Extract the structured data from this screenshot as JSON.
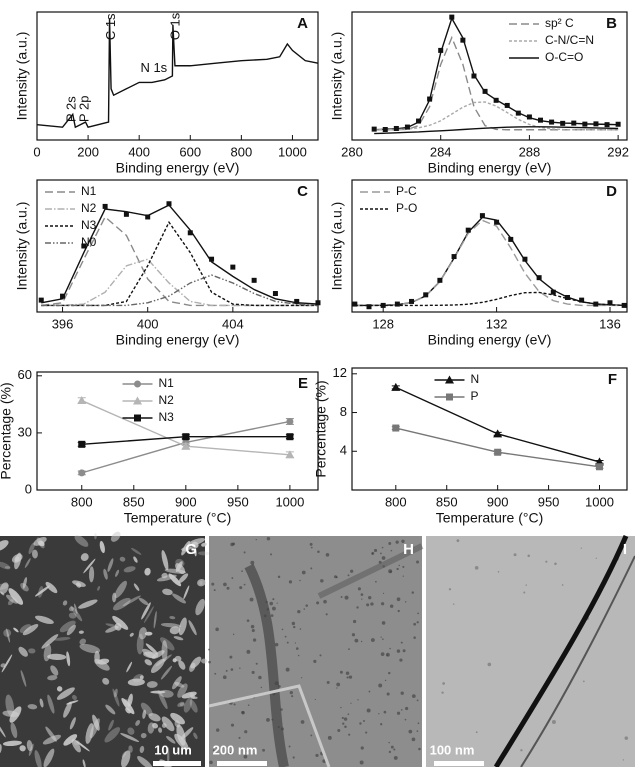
{
  "chart_data": [
    {
      "type": "line",
      "panel": "A",
      "xlabel": "Binding energy (eV)",
      "ylabel": "Intensity (a.u.)",
      "xlim": [
        0,
        1100
      ],
      "xticks": [
        0,
        200,
        400,
        600,
        800,
        1000
      ],
      "ylim": [
        0,
        100
      ],
      "annotations": [
        "P 2s",
        "P 2p",
        "C 1s",
        "N 1s",
        "O 1s"
      ],
      "x": [
        0,
        100,
        140,
        150,
        190,
        200,
        280,
        284,
        290,
        300,
        350,
        400,
        450,
        500,
        530,
        532,
        540,
        600,
        700,
        800,
        900,
        950,
        980,
        1000,
        1050,
        1100
      ],
      "series": [
        {
          "color": "#111111",
          "style": "solid",
          "values": [
            12,
            10,
            20,
            10,
            14,
            10,
            14,
            95,
            40,
            35,
            40,
            45,
            45,
            47,
            50,
            90,
            58,
            58,
            60,
            62,
            63,
            65,
            75,
            70,
            62,
            60
          ]
        }
      ]
    },
    {
      "type": "line",
      "panel": "B",
      "xlabel": "Binding energy (eV)",
      "ylabel": "Intensity (a.u.)",
      "xlim": [
        280,
        292.4
      ],
      "xticks": [
        280,
        284,
        288,
        292
      ],
      "ylim": [
        0,
        100
      ],
      "legend": "upper right",
      "x": [
        281,
        281.5,
        282,
        282.5,
        283,
        283.5,
        284,
        284.5,
        285,
        285.5,
        286,
        286.5,
        287,
        287.5,
        288,
        288.5,
        289,
        289.5,
        290,
        290.5,
        291,
        291.5,
        292
      ],
      "series": [
        {
          "color": "#111111",
          "style": "solid",
          "values": [
            8,
            8.4,
            8.7,
            9.8,
            14,
            31.3,
            68.2,
            95,
            79.8,
            51,
            37.1,
            31.4,
            26.4,
            21.3,
            17.4,
            15.1,
            13.9,
            13.2,
            13,
            12.6,
            12.4,
            12.2,
            12
          ]
        },
        {
          "name": "sp² C",
          "color": "#8a8a8a",
          "style": "long",
          "values": [
            8,
            8,
            8,
            8.3,
            11.2,
            26,
            59,
            80,
            59,
            26,
            11.2,
            8.3,
            8,
            8,
            8,
            8,
            8,
            8,
            8,
            8,
            8,
            8,
            8
          ]
        },
        {
          "name": "C-N/C=N",
          "color": "#aaaaaa",
          "style": "short",
          "values": [
            8,
            8.1,
            8.1,
            8.5,
            9.5,
            11.5,
            15,
            20.3,
            25.6,
            29.3,
            29.7,
            26.5,
            21.4,
            16.1,
            12.1,
            9.8,
            8.7,
            8.2,
            8,
            8,
            8,
            8,
            8
          ]
        },
        {
          "name": "O-C=O",
          "color": "#111111",
          "style": "solid",
          "values": [
            5,
            5.3,
            5.6,
            6,
            6.3,
            6.8,
            7.2,
            7.7,
            8.2,
            8.7,
            9.2,
            9.6,
            10,
            10.2,
            10.3,
            10.3,
            10.2,
            10,
            9.8,
            9.6,
            9.4,
            9.2,
            9
          ]
        },
        {
          "color": "#111111",
          "style": "points",
          "values": [
            8.5,
            8.2,
            9,
            10.1,
            14.8,
            32,
            70,
            96,
            78,
            50,
            38,
            31,
            27,
            21,
            18,
            15.5,
            14,
            13,
            13.2,
            12.4,
            12.6,
            12,
            12.3
          ]
        }
      ]
    },
    {
      "type": "line",
      "panel": "C",
      "xlabel": "Binding energy (eV)",
      "ylabel": "Intensity (a.u.)",
      "xlim": [
        394.8,
        408
      ],
      "xticks": [
        396,
        400,
        404
      ],
      "ylim": [
        0,
        100
      ],
      "legend": "upper left",
      "x": [
        395,
        396,
        397,
        398,
        399,
        400,
        401,
        402,
        403,
        404,
        405,
        406,
        407,
        408
      ],
      "series": [
        {
          "color": "#111111",
          "style": "solid",
          "values": [
            7,
            10,
            45,
            78,
            76,
            73,
            81,
            62,
            38,
            27,
            17,
            10,
            7,
            6
          ]
        },
        {
          "name": "N1",
          "color": "#8a8a8a",
          "style": "long",
          "values": [
            5,
            7,
            40,
            72,
            58,
            25,
            8,
            5,
            5,
            5,
            5,
            5,
            5,
            5
          ]
        },
        {
          "name": "N2",
          "color": "#b0b0b0",
          "style": "dashdot",
          "values": [
            5,
            5,
            6,
            15,
            35,
            40,
            22,
            8,
            5,
            5,
            5,
            5,
            5,
            5
          ]
        },
        {
          "name": "N3",
          "color": "#111111",
          "style": "short",
          "values": [
            5,
            5,
            5,
            5,
            8,
            35,
            68,
            45,
            15,
            6,
            5,
            5,
            5,
            5
          ]
        },
        {
          "name": "N0",
          "color": "#666666",
          "style": "dashdotdot",
          "values": [
            5,
            5,
            5,
            5,
            5,
            7,
            12,
            22,
            28,
            22,
            14,
            8,
            6,
            5
          ]
        },
        {
          "color": "#111111",
          "style": "points",
          "values": [
            9,
            12,
            50,
            80,
            74,
            72,
            82,
            60,
            40,
            34,
            24,
            14,
            8,
            7
          ]
        }
      ]
    },
    {
      "type": "line",
      "panel": "D",
      "xlabel": "Binding energy (eV)",
      "ylabel": "Intensity (a.u.)",
      "xlim": [
        126.9,
        136.6
      ],
      "xticks": [
        128,
        132,
        136
      ],
      "ylim": [
        0,
        100
      ],
      "legend": "upper left",
      "x": [
        127,
        127.5,
        128,
        128.5,
        129,
        129.5,
        130,
        130.5,
        131,
        131.5,
        132,
        132.5,
        133,
        133.5,
        134,
        134.5,
        135,
        135.5,
        136,
        136.5
      ],
      "series": [
        {
          "color": "#111111",
          "style": "solid",
          "values": [
            5,
            5,
            5.1,
            5.5,
            7.2,
            12.2,
            23.1,
            40.9,
            60.5,
            71.7,
            69.6,
            56,
            39,
            25.2,
            16.6,
            11.2,
            7.7,
            6.1,
            5.4,
            5.1
          ]
        },
        {
          "name": "P-C",
          "color": "#9a9a9a",
          "style": "long",
          "values": [
            5,
            5,
            5.1,
            5.5,
            7.2,
            12.2,
            23,
            40.6,
            59.6,
            69.4,
            65,
            48.5,
            29.4,
            15.4,
            8.6,
            6,
            5,
            5,
            5,
            5
          ]
        },
        {
          "name": "P-O",
          "color": "#111111",
          "style": "short",
          "values": [
            5,
            5,
            5,
            5,
            5,
            5,
            5.1,
            5.3,
            5.9,
            7.3,
            9.6,
            12.5,
            14.6,
            14.8,
            13,
            10.2,
            7.7,
            6.1,
            5.4,
            5.1
          ]
        },
        {
          "color": "#111111",
          "style": "points",
          "values": [
            6,
            4,
            5,
            6,
            8,
            13,
            24,
            42,
            62,
            73,
            68,
            55,
            40,
            26,
            15,
            11,
            9,
            6,
            7,
            5
          ]
        }
      ]
    },
    {
      "type": "line",
      "panel": "E",
      "xlabel": "Temperature (°C)",
      "ylabel": "Percentage (%)",
      "xlim": [
        757,
        1027
      ],
      "xticks": [
        800,
        850,
        900,
        950,
        1000
      ],
      "ylim": [
        0,
        62
      ],
      "yticks": [
        0,
        30,
        60
      ],
      "legend": "upper center",
      "x": [
        800,
        900,
        1000
      ],
      "series": [
        {
          "name": "N1",
          "color": "#8c8c8c",
          "style": "solid",
          "marker": "circle",
          "values": [
            9,
            25,
            36
          ],
          "errors": [
            1,
            1.5,
            1.5
          ]
        },
        {
          "name": "N2",
          "color": "#b5b5b5",
          "style": "solid",
          "marker": "triangle",
          "values": [
            47,
            23,
            18.5
          ],
          "errors": [
            1.5,
            1.5,
            1.5
          ]
        },
        {
          "name": "N3",
          "color": "#111111",
          "style": "solid",
          "marker": "square",
          "values": [
            24,
            28,
            28
          ],
          "errors": [
            1,
            1,
            1
          ]
        }
      ]
    },
    {
      "type": "line",
      "panel": "F",
      "xlabel": "Temperature (°C)",
      "ylabel": "Percentage (%)",
      "xlim": [
        757,
        1027
      ],
      "xticks": [
        800,
        850,
        900,
        950,
        1000
      ],
      "ylim": [
        0,
        12.6
      ],
      "yticks": [
        4,
        8,
        12
      ],
      "legend": "upper center",
      "x": [
        800,
        900,
        1000
      ],
      "series": [
        {
          "name": "N",
          "color": "#111111",
          "style": "solid",
          "marker": "triangle",
          "values": [
            10.6,
            5.8,
            2.9
          ],
          "errors": [
            0.15,
            0.15,
            0.15
          ]
        },
        {
          "name": "P",
          "color": "#777777",
          "style": "solid",
          "marker": "square",
          "values": [
            6.4,
            3.9,
            2.4
          ],
          "errors": [
            0.15,
            0.15,
            0.15
          ]
        }
      ]
    }
  ],
  "images": [
    {
      "label": "G",
      "scale_bar": "10 um"
    },
    {
      "label": "H",
      "scale_bar": "200 nm"
    },
    {
      "label": "I",
      "scale_bar": "100 nm"
    }
  ]
}
